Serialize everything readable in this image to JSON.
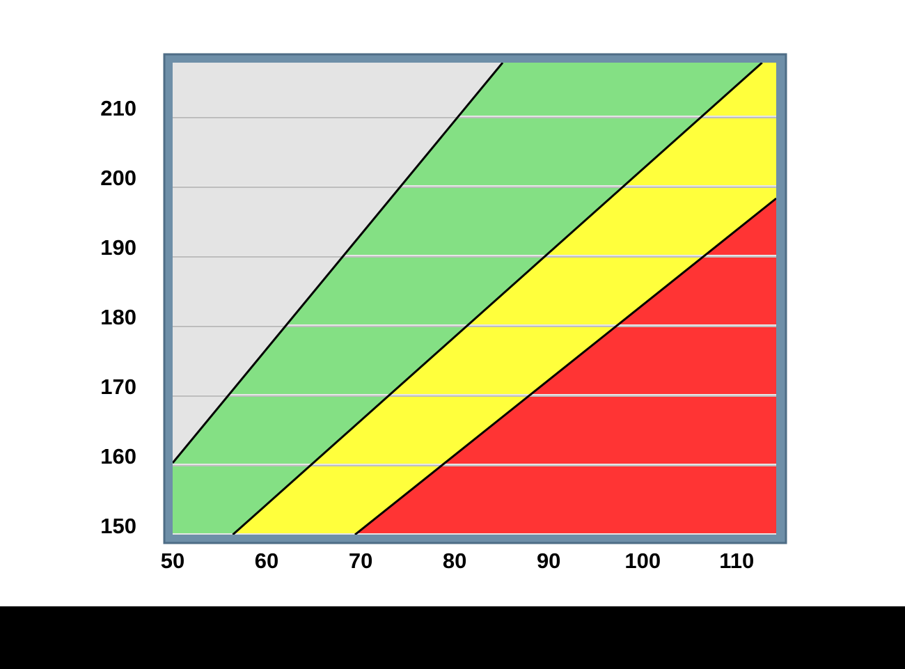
{
  "chart_data": {
    "type": "zones",
    "xlim": [
      50,
      114.2
    ],
    "ylim": [
      150,
      217.8
    ],
    "xticks": [
      50,
      60,
      70,
      80,
      90,
      100,
      110
    ],
    "yticks": [
      150,
      160,
      170,
      180,
      190,
      200,
      210
    ],
    "grid": true,
    "zone_colors": [
      "#e4e4e4",
      "#84e084",
      "#ffff3c",
      "#ff3434"
    ],
    "series": [
      {
        "color": "#000000",
        "x": [
          50,
          85.1
        ],
        "values": [
          160.3,
          217.8
        ]
      },
      {
        "color": "#000000",
        "x": [
          56.4,
          112.7
        ],
        "values": [
          150,
          217.8
        ]
      },
      {
        "color": "#000000",
        "x": [
          69.4,
          114.2
        ],
        "values": [
          150,
          198.3
        ]
      }
    ]
  }
}
